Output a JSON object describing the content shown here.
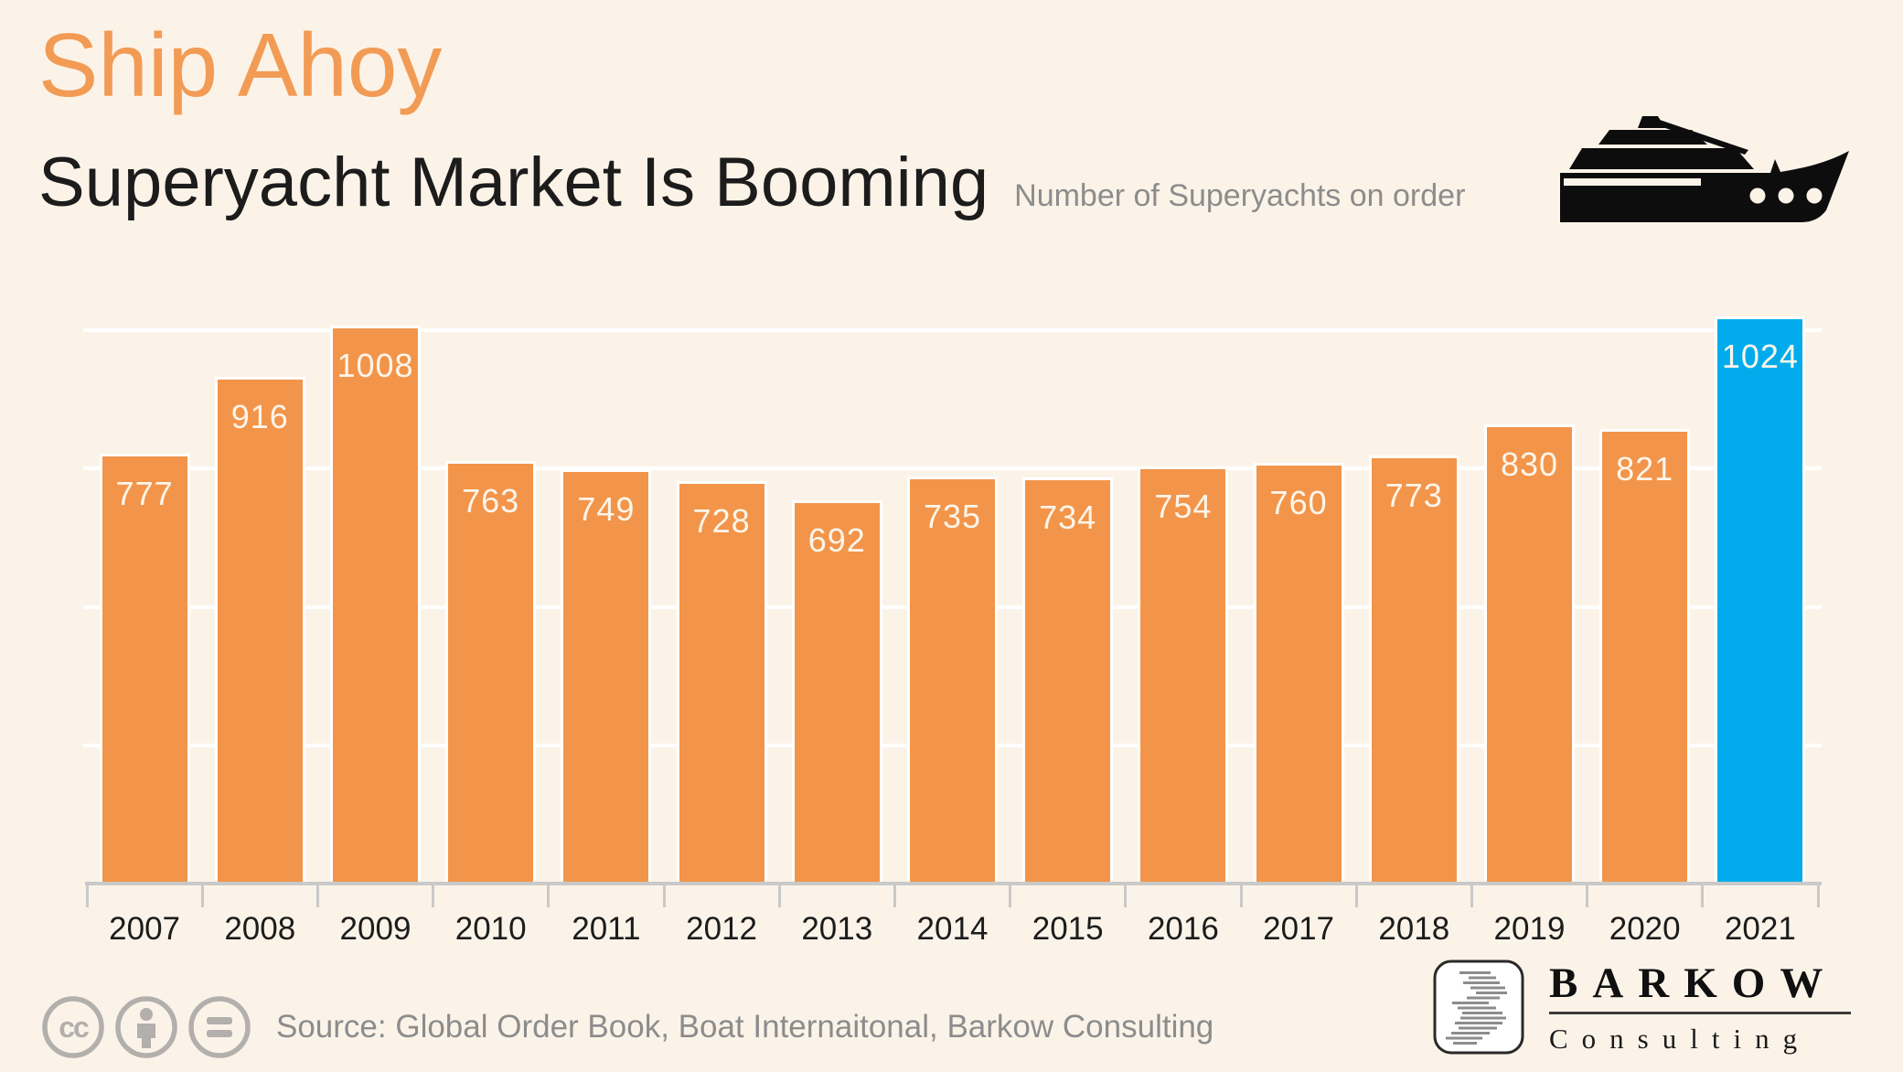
{
  "header": {
    "title": "Ship Ahoy",
    "subtitle": "Superyacht Market Is Booming",
    "series_label": "Number of Superyachts on order"
  },
  "chart_data": {
    "type": "bar",
    "title": "Ship Ahoy",
    "subtitle": "Superyacht Market Is Booming",
    "ylabel": "Number of Superyachts on order",
    "xlabel": "",
    "categories": [
      "2007",
      "2008",
      "2009",
      "2010",
      "2011",
      "2012",
      "2013",
      "2014",
      "2015",
      "2016",
      "2017",
      "2018",
      "2019",
      "2020",
      "2021"
    ],
    "values": [
      777,
      916,
      1008,
      763,
      749,
      728,
      692,
      735,
      734,
      754,
      760,
      773,
      830,
      821,
      1024
    ],
    "data_labels": true,
    "ylim": [
      0,
      1050
    ],
    "gridline_values": [
      250,
      500,
      750,
      1000
    ],
    "grid": true,
    "legend": false,
    "bar_color": "#F2954A",
    "highlight": {
      "index": 14,
      "category": "2021",
      "value": 1024,
      "color": "#02ACEC"
    }
  },
  "footer": {
    "source": "Source: Global Order Book, Boat Internaitonal, Barkow Consulting",
    "license_icons": [
      "cc-icon",
      "attribution-person-icon",
      "equals-nd-icon"
    ],
    "logo_title": "BARKOW",
    "logo_subtitle": "Consulting"
  },
  "colors": {
    "background": "#FCF3E8",
    "title_orange": "#F29B55",
    "bar_orange": "#F2954A",
    "highlight_blue": "#02ACEC",
    "muted_gray": "#8C8C8C",
    "axis_gray": "#C9C9C9",
    "grid_white": "#FFFFFF",
    "label_on_bar": "#FDF5EA",
    "icon_gray": "#B2AFAC",
    "ink": "#1C1C1C"
  }
}
